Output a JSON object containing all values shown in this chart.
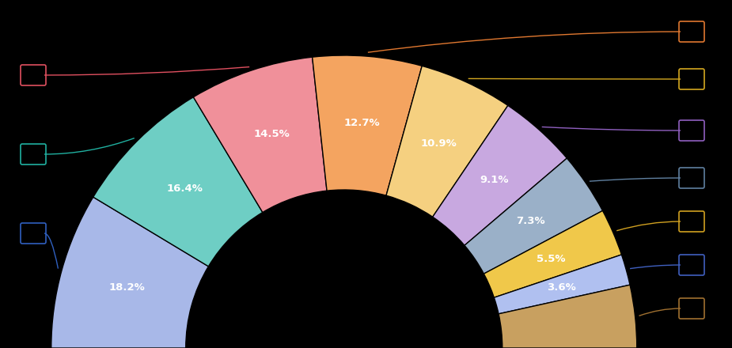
{
  "segments": [
    {
      "label": "18.2%",
      "value": 18.2,
      "color": "#a8b8e8",
      "line_color": "#3060c0",
      "side": "left"
    },
    {
      "label": "16.4%",
      "value": 16.4,
      "color": "#6ecec4",
      "line_color": "#20b0a0",
      "side": "left"
    },
    {
      "label": "14.5%",
      "value": 14.5,
      "color": "#f0909a",
      "line_color": "#e05060",
      "side": "left"
    },
    {
      "label": "12.7%",
      "value": 12.7,
      "color": "#f4a460",
      "line_color": "#e07830",
      "side": "right"
    },
    {
      "label": "10.9%",
      "value": 10.9,
      "color": "#f5d080",
      "line_color": "#d4a820",
      "side": "right"
    },
    {
      "label": "9.1%",
      "value": 9.1,
      "color": "#c8a8e0",
      "line_color": "#9060c0",
      "side": "right"
    },
    {
      "label": "7.3%",
      "value": 7.3,
      "color": "#9ab0c8",
      "line_color": "#6080a0",
      "side": "right"
    },
    {
      "label": "5.5%",
      "value": 5.5,
      "color": "#f0c84a",
      "line_color": "#d0a020",
      "side": "right"
    },
    {
      "label": "3.6%",
      "value": 3.6,
      "color": "#b0c0f0",
      "line_color": "#4060c0",
      "side": "right"
    },
    {
      "label": "",
      "value": 7.3,
      "color": "#c8a060",
      "line_color": "#a07030",
      "side": "right"
    }
  ],
  "background_color": "#000000",
  "text_color": "#ffffff",
  "figsize": [
    9.25,
    4.4
  ],
  "dpi": 100
}
